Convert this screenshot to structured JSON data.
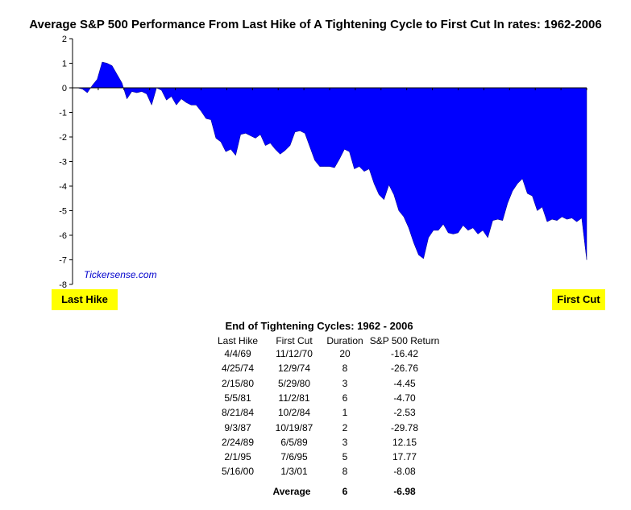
{
  "chart_data": {
    "type": "area",
    "title": "Average S&P 500 Performance From Last Hike of A Tightening Cycle to First Cut In rates: 1962-2006",
    "ylim": [
      -8,
      2
    ],
    "yticks": [
      "2",
      "1",
      "0",
      "-1",
      "-2",
      "-3",
      "-4",
      "-5",
      "-6",
      "-7",
      "-8"
    ],
    "ytick_values": [
      2,
      1,
      0,
      -1,
      -2,
      -3,
      -4,
      -5,
      -6,
      -7,
      -8
    ],
    "x_labels": {
      "start": "Last Hike",
      "end": "First Cut"
    },
    "watermark": "Tickersense.com",
    "fill_color": "#0000ff",
    "series": [
      {
        "values": [
          0,
          0,
          -0.05,
          -0.2,
          0.1,
          0.35,
          1.05,
          1.0,
          0.9,
          0.55,
          0.2,
          -0.45,
          -0.15,
          -0.2,
          -0.15,
          -0.25,
          -0.7,
          0,
          -0.1,
          -0.5,
          -0.35,
          -0.7,
          -0.45,
          -0.6,
          -0.7,
          -0.7,
          -0.95,
          -1.25,
          -1.3,
          -2.05,
          -2.2,
          -2.6,
          -2.5,
          -2.75,
          -1.9,
          -1.85,
          -1.95,
          -2.05,
          -1.9,
          -2.35,
          -2.25,
          -2.5,
          -2.7,
          -2.55,
          -2.35,
          -1.8,
          -1.75,
          -1.85,
          -2.4,
          -2.95,
          -3.2,
          -3.2,
          -3.2,
          -3.25,
          -2.9,
          -2.5,
          -2.6,
          -3.3,
          -3.2,
          -3.4,
          -3.3,
          -3.9,
          -4.35,
          -4.55,
          -3.95,
          -4.35,
          -5.0,
          -5.25,
          -5.7,
          -6.3,
          -6.8,
          -6.95,
          -6.1,
          -5.8,
          -5.8,
          -5.55,
          -5.9,
          -5.95,
          -5.9,
          -5.6,
          -5.8,
          -5.7,
          -5.95,
          -5.8,
          -6.1,
          -5.4,
          -5.35,
          -5.4,
          -4.7,
          -4.2,
          -3.9,
          -3.7,
          -4.3,
          -4.4,
          -5.0,
          -4.85,
          -5.45,
          -5.35,
          -5.4,
          -5.25,
          -5.35,
          -5.3,
          -5.45,
          -5.3,
          -7.0
        ]
      }
    ]
  },
  "table": {
    "title": "End of Tightening Cycles: 1962 - 2006",
    "headers": [
      "Last Hike",
      "First Cut",
      "Duration",
      "S&P 500 Return"
    ],
    "rows": [
      [
        "4/4/69",
        "11/12/70",
        "20",
        "-16.42"
      ],
      [
        "4/25/74",
        "12/9/74",
        "8",
        "-26.76"
      ],
      [
        "2/15/80",
        "5/29/80",
        "3",
        "-4.45"
      ],
      [
        "5/5/81",
        "11/2/81",
        "6",
        "-4.70"
      ],
      [
        "8/21/84",
        "10/2/84",
        "1",
        "-2.53"
      ],
      [
        "9/3/87",
        "10/19/87",
        "2",
        "-29.78"
      ],
      [
        "2/24/89",
        "6/5/89",
        "3",
        "12.15"
      ],
      [
        "2/1/95",
        "7/6/95",
        "5",
        "17.77"
      ],
      [
        "5/16/00",
        "1/3/01",
        "8",
        "-8.08"
      ]
    ],
    "average": {
      "label": "Average",
      "duration": "6",
      "return": "-6.98"
    }
  }
}
